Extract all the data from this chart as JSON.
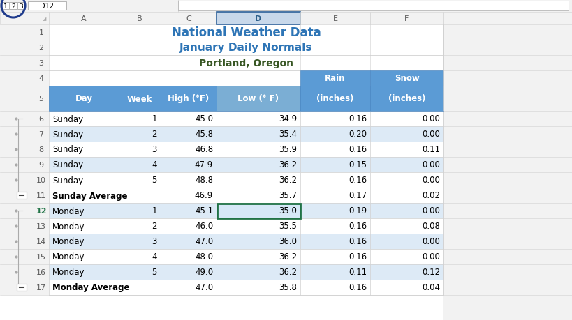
{
  "title1": "National Weather Data",
  "title2": "January Daily Normals",
  "title3": "Portland, Oregon",
  "title1_color": "#2E75B6",
  "title2_color": "#2E75B6",
  "title3_color": "#375623",
  "header_bg": "#5B9BD5",
  "data_row_bg_alt": "#DDEAF6",
  "data_row_bg": "#FFFFFF",
  "col_letters": [
    "A",
    "B",
    "C",
    "D",
    "E",
    "F"
  ],
  "rows": [
    {
      "row": 6,
      "day": "Sunday",
      "week": "1",
      "high": "45.0",
      "low": "34.9",
      "rain": "0.16",
      "snow": "0.00",
      "alt": false,
      "subtotal": false
    },
    {
      "row": 7,
      "day": "Sunday",
      "week": "2",
      "high": "45.8",
      "low": "35.4",
      "rain": "0.20",
      "snow": "0.00",
      "alt": true,
      "subtotal": false
    },
    {
      "row": 8,
      "day": "Sunday",
      "week": "3",
      "high": "46.8",
      "low": "35.9",
      "rain": "0.16",
      "snow": "0.11",
      "alt": false,
      "subtotal": false
    },
    {
      "row": 9,
      "day": "Sunday",
      "week": "4",
      "high": "47.9",
      "low": "36.2",
      "rain": "0.15",
      "snow": "0.00",
      "alt": true,
      "subtotal": false
    },
    {
      "row": 10,
      "day": "Sunday",
      "week": "5",
      "high": "48.8",
      "low": "36.2",
      "rain": "0.16",
      "snow": "0.00",
      "alt": false,
      "subtotal": false
    },
    {
      "row": 11,
      "day": "Sunday Average",
      "week": "",
      "high": "46.9",
      "low": "35.7",
      "rain": "0.17",
      "snow": "0.02",
      "alt": false,
      "subtotal": true
    },
    {
      "row": 12,
      "day": "Monday",
      "week": "1",
      "high": "45.1",
      "low": "35.0",
      "rain": "0.19",
      "snow": "0.00",
      "alt": true,
      "subtotal": false
    },
    {
      "row": 13,
      "day": "Monday",
      "week": "2",
      "high": "46.0",
      "low": "35.5",
      "rain": "0.16",
      "snow": "0.08",
      "alt": false,
      "subtotal": false
    },
    {
      "row": 14,
      "day": "Monday",
      "week": "3",
      "high": "47.0",
      "low": "36.0",
      "rain": "0.16",
      "snow": "0.00",
      "alt": true,
      "subtotal": false
    },
    {
      "row": 15,
      "day": "Monday",
      "week": "4",
      "high": "48.0",
      "low": "36.2",
      "rain": "0.16",
      "snow": "0.00",
      "alt": false,
      "subtotal": false
    },
    {
      "row": 16,
      "day": "Monday",
      "week": "5",
      "high": "49.0",
      "low": "36.2",
      "rain": "0.11",
      "snow": "0.12",
      "alt": true,
      "subtotal": false
    },
    {
      "row": 17,
      "day": "Monday Average",
      "week": "",
      "high": "47.0",
      "low": "35.8",
      "rain": "0.16",
      "snow": "0.04",
      "alt": false,
      "subtotal": true
    }
  ],
  "outline_buttons": [
    "1",
    "2",
    "3"
  ],
  "circle_color": "#1F3B8C"
}
